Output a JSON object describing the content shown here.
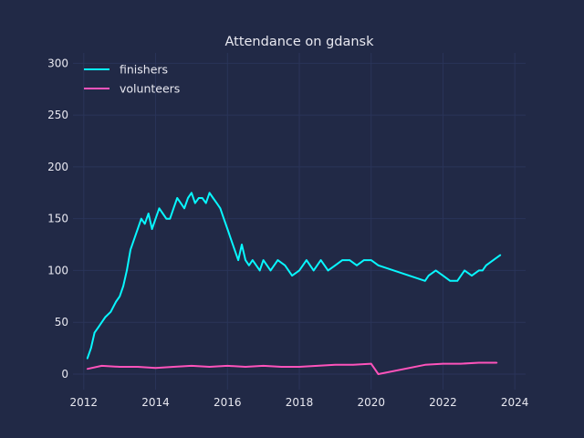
{
  "chart_data": {
    "type": "line",
    "title": "Attendance on gdansk",
    "xlabel": "",
    "ylabel": "",
    "xlim": [
      2011.7,
      2024.3
    ],
    "ylim": [
      -15,
      310
    ],
    "x_ticks": [
      2012,
      2014,
      2016,
      2018,
      2020,
      2022,
      2024
    ],
    "y_ticks": [
      0,
      50,
      100,
      150,
      200,
      250,
      300
    ],
    "grid": true,
    "legend_position": "top-left",
    "colors": {
      "background": "#212946",
      "grid": "#2A3459",
      "text": "#e8e8f0"
    },
    "series": [
      {
        "name": "finishers",
        "color": "#08F7FE",
        "x": [
          2012.1,
          2012.2,
          2012.3,
          2012.4,
          2012.5,
          2012.6,
          2012.75,
          2012.9,
          2013.0,
          2013.1,
          2013.2,
          2013.3,
          2013.4,
          2013.5,
          2013.6,
          2013.7,
          2013.8,
          2013.9,
          2014.0,
          2014.1,
          2014.2,
          2014.3,
          2014.4,
          2014.5,
          2014.6,
          2014.7,
          2014.8,
          2014.9,
          2015.0,
          2015.1,
          2015.2,
          2015.3,
          2015.4,
          2015.5,
          2015.6,
          2015.7,
          2015.8,
          2015.9,
          2016.0,
          2016.1,
          2016.2,
          2016.3,
          2016.4,
          2016.5,
          2016.6,
          2016.7,
          2016.8,
          2016.9,
          2017.0,
          2017.2,
          2017.4,
          2017.6,
          2017.8,
          2018.0,
          2018.2,
          2018.4,
          2018.6,
          2018.8,
          2019.0,
          2019.2,
          2019.4,
          2019.6,
          2019.8,
          2020.0,
          2020.2,
          2021.5,
          2021.6,
          2021.8,
          2022.0,
          2022.2,
          2022.4,
          2022.6,
          2022.8,
          2023.0,
          2023.1,
          2023.2,
          2023.4,
          2023.6
        ],
        "values": [
          15,
          25,
          40,
          45,
          50,
          55,
          60,
          70,
          75,
          85,
          100,
          120,
          130,
          140,
          150,
          145,
          155,
          140,
          150,
          160,
          155,
          150,
          150,
          160,
          170,
          165,
          160,
          170,
          175,
          165,
          170,
          170,
          165,
          175,
          170,
          165,
          160,
          150,
          140,
          130,
          120,
          110,
          125,
          110,
          105,
          110,
          105,
          100,
          110,
          100,
          110,
          105,
          95,
          100,
          110,
          100,
          110,
          100,
          105,
          110,
          110,
          105,
          110,
          110,
          105,
          90,
          95,
          100,
          95,
          90,
          90,
          100,
          95,
          100,
          100,
          105,
          110,
          115
        ]
      },
      {
        "name": "volunteers",
        "color": "#FE53BB",
        "x": [
          2012.1,
          2012.5,
          2013.0,
          2013.5,
          2014.0,
          2014.5,
          2015.0,
          2015.5,
          2016.0,
          2016.5,
          2017.0,
          2017.5,
          2018.0,
          2018.5,
          2019.0,
          2019.5,
          2020.0,
          2020.2,
          2021.5,
          2022.0,
          2022.5,
          2023.0,
          2023.5
        ],
        "values": [
          5,
          8,
          7,
          7,
          6,
          7,
          8,
          7,
          8,
          7,
          8,
          7,
          7,
          8,
          9,
          9,
          10,
          0,
          9,
          10,
          10,
          11,
          11
        ]
      }
    ]
  }
}
